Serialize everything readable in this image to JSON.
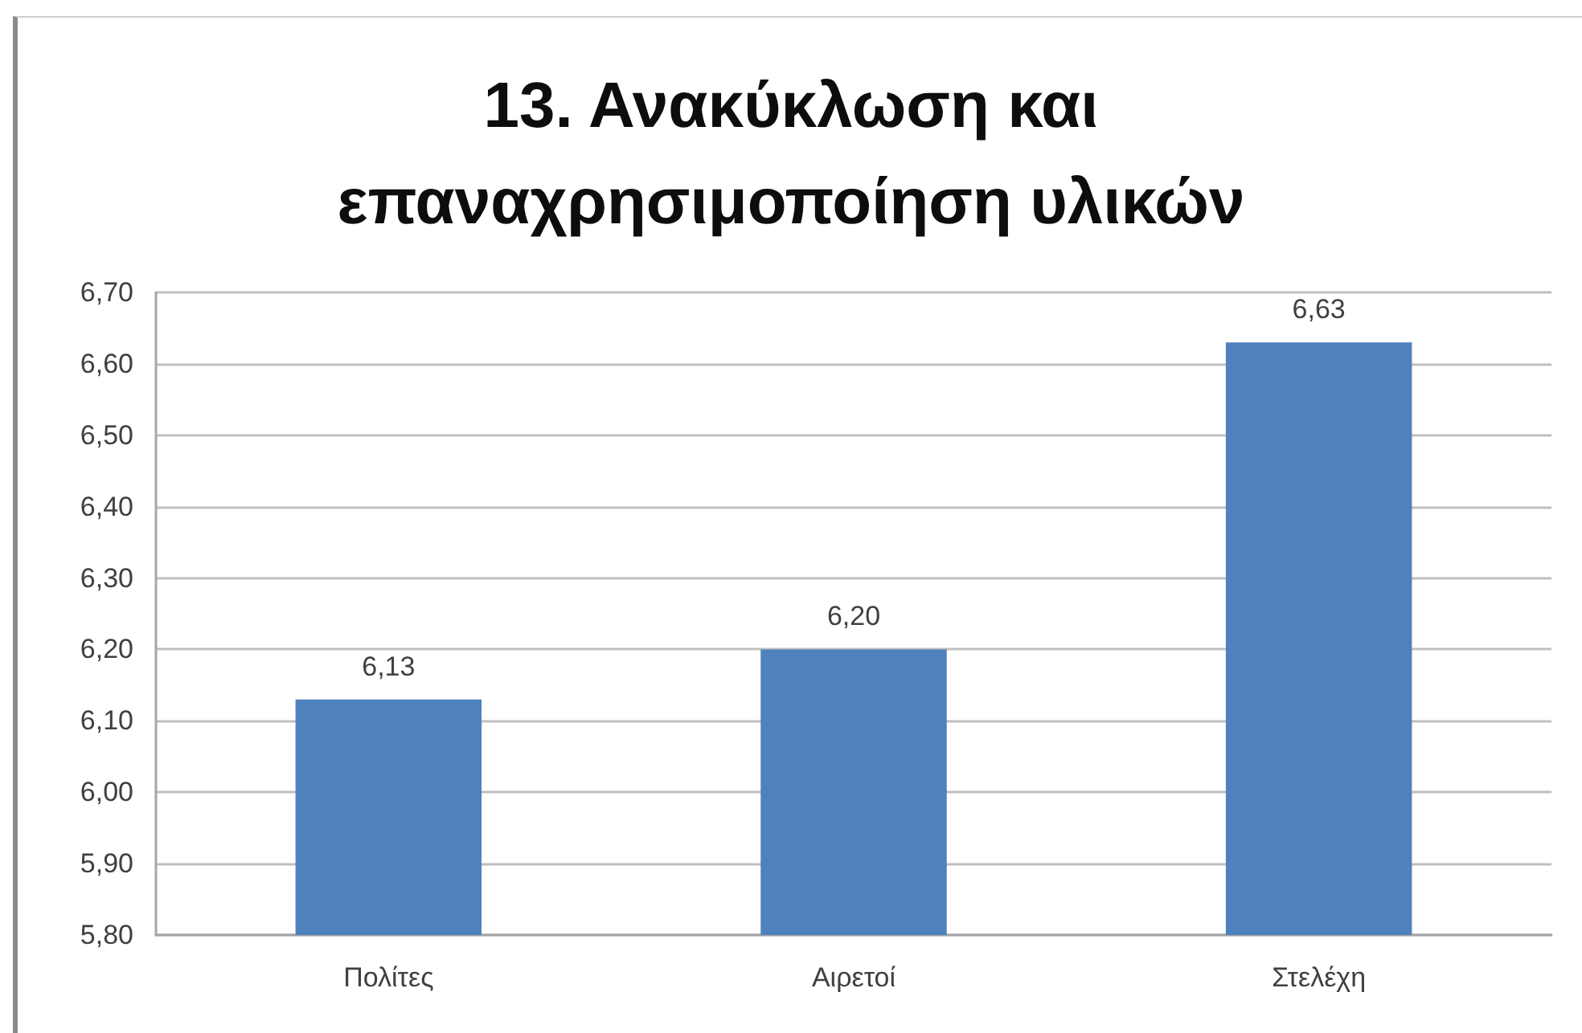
{
  "chart_data": {
    "type": "bar",
    "title": "13. Ανακύκλωση και επαναχρησιμοποίηση υλικών",
    "categories": [
      "Πολίτες",
      "Αιρετοί",
      "Στελέχη"
    ],
    "series": [
      {
        "color": "#4f81bd",
        "values": [
          6.13,
          6.2,
          6.63
        ],
        "value_labels": [
          "6,13",
          "6,20",
          "6,63"
        ]
      }
    ],
    "ylim": [
      5.8,
      6.7
    ],
    "yticks": [
      {
        "value": 5.8,
        "label": "5,80"
      },
      {
        "value": 5.9,
        "label": "5,90"
      },
      {
        "value": 6.0,
        "label": "6,00"
      },
      {
        "value": 6.1,
        "label": "6,10"
      },
      {
        "value": 6.2,
        "label": "6,20"
      },
      {
        "value": 6.3,
        "label": "6,30"
      },
      {
        "value": 6.4,
        "label": "6,40"
      },
      {
        "value": 6.5,
        "label": "6,50"
      },
      {
        "value": 6.6,
        "label": "6,60"
      },
      {
        "value": 6.7,
        "label": "6,70"
      }
    ],
    "grid": "y"
  }
}
